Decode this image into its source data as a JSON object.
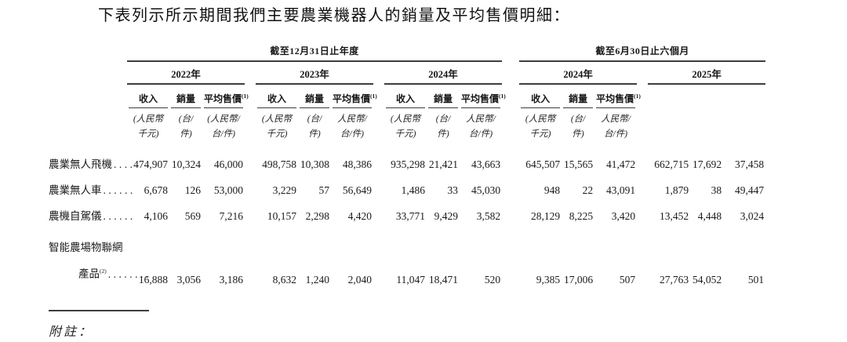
{
  "document": {
    "title": "下表列示所示期間我們主要農業機器人的銷量及平均售價明細：",
    "notes_label": "附註："
  },
  "table": {
    "span_headers": [
      "截至12月31日止年度",
      "截至6月30日止六個月"
    ],
    "years": [
      "2022年",
      "2023年",
      "2024年",
      "2024年",
      "2025年"
    ],
    "columns": {
      "revenue": "收入",
      "volume": "銷量",
      "asp": "平均售價",
      "asp_note_ref": "(1)"
    },
    "units": {
      "revenue": [
        "(人民幣",
        "千元)"
      ],
      "volume": [
        "(台/",
        "件)"
      ],
      "asp_first": [
        "(人民幣/",
        "台/件)"
      ],
      "asp": [
        "人民幣/",
        "台/件)"
      ]
    },
    "rows": [
      {
        "label": "農業無人飛機",
        "dots": "....",
        "values": [
          "474,907",
          "10,324",
          "46,000",
          "498,758",
          "10,308",
          "48,386",
          "935,298",
          "21,421",
          "43,663",
          "645,507",
          "15,565",
          "41,472",
          "662,715",
          "17,692",
          "37,458"
        ]
      },
      {
        "label": "農業無人車",
        "dots": "......",
        "values": [
          "6,678",
          "126",
          "53,000",
          "3,229",
          "57",
          "56,649",
          "1,486",
          "33",
          "45,030",
          "948",
          "22",
          "43,091",
          "1,879",
          "38",
          "49,447"
        ]
      },
      {
        "label": "農機自駕儀",
        "dots": "......",
        "values": [
          "4,106",
          "569",
          "7,216",
          "10,157",
          "2,298",
          "4,420",
          "33,771",
          "9,429",
          "3,582",
          "28,129",
          "8,225",
          "3,420",
          "13,452",
          "4,448",
          "3,024"
        ]
      },
      {
        "label_line1": "智能農場物聯網",
        "label_line2": "產品",
        "note_ref": "(2)",
        "dots": "........",
        "values": [
          "16,888",
          "3,056",
          "3,186",
          "8,632",
          "1,240",
          "2,040",
          "11,047",
          "18,471",
          "520",
          "9,385",
          "17,006",
          "507",
          "27,763",
          "54,052",
          "501"
        ]
      }
    ]
  }
}
